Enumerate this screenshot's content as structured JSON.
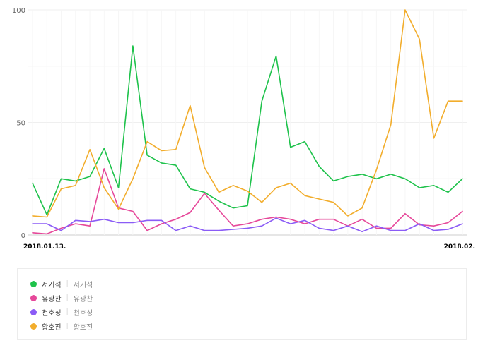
{
  "chart_data": {
    "type": "line",
    "title": "",
    "xlabel": "",
    "ylabel": "",
    "ylim": [
      0,
      100
    ],
    "yticks": [
      0,
      50,
      100
    ],
    "x_tick_labels": [
      "2018.01.13.",
      "2018.02."
    ],
    "grid": true,
    "legend_position": "bottom",
    "series": [
      {
        "name": "서거석",
        "subname": "서거석",
        "color": "#1ec24b",
        "values": [
          23,
          9,
          25,
          24,
          26,
          38.5,
          21,
          84,
          35.5,
          32,
          31,
          20.5,
          19,
          15,
          12,
          13,
          59.5,
          79.5,
          39,
          41.5,
          30.5,
          24,
          26,
          27,
          25,
          27,
          25,
          21,
          22,
          19,
          25
        ]
      },
      {
        "name": "유광찬",
        "subname": "유광찬",
        "color": "#e6489a",
        "values": [
          1,
          0.5,
          3,
          5,
          4,
          29.5,
          12,
          10.5,
          2,
          5,
          7,
          10,
          18.5,
          11,
          4,
          5,
          7,
          8,
          7,
          5,
          7,
          7,
          4,
          7,
          3,
          3,
          9.5,
          4.5,
          4,
          5.5,
          10.5
        ]
      },
      {
        "name": "천호성",
        "subname": "천호성",
        "color": "#8b5cf6",
        "values": [
          5,
          5,
          2,
          6.5,
          6,
          7,
          5.5,
          5.5,
          6.5,
          6.5,
          2,
          4,
          2,
          2,
          2.5,
          3,
          4,
          7.5,
          5,
          6.5,
          3,
          2,
          4,
          1.5,
          4,
          2,
          2,
          5,
          2,
          2.5,
          5
        ]
      },
      {
        "name": "황호진",
        "subname": "황호진",
        "color": "#f2ad2c",
        "values": [
          8.5,
          8,
          20.5,
          22,
          38,
          21,
          11.5,
          25,
          41.5,
          37.5,
          38,
          57.5,
          30,
          19,
          22,
          19.5,
          14.5,
          21,
          23,
          17.5,
          16,
          14.5,
          8.5,
          12,
          29,
          49,
          100,
          87,
          43,
          59.5,
          59.5
        ]
      }
    ]
  }
}
